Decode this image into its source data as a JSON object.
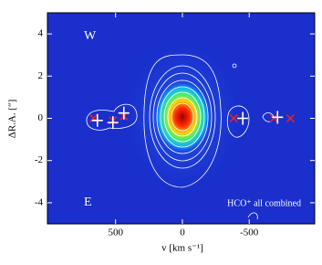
{
  "chart_data": {
    "type": "scatter",
    "xlabel": "v [km s⁻¹]",
    "ylabel": "ΔR.A. [″]",
    "annotations": [
      "W",
      "E",
      "HCO⁺ all combined"
    ],
    "xlim": [
      1010,
      -990
    ],
    "ylim": [
      -5,
      5
    ],
    "xticks": [
      500,
      0,
      -500
    ],
    "yticks": [
      -4,
      -2,
      0,
      2,
      4
    ],
    "series": [
      {
        "marker": "x",
        "color": "#e8202a",
        "x": [
          664,
          520,
          438,
          -384,
          -685,
          -808
        ],
        "y": [
          0,
          -0.1,
          0.1,
          0,
          0,
          0
        ]
      },
      {
        "marker": "+",
        "color": "#ffffff",
        "x": [
          636,
          520,
          438,
          -452,
          -712
        ],
        "y": [
          -0.1,
          -0.2,
          0.25,
          0,
          0.05
        ]
      }
    ]
  }
}
